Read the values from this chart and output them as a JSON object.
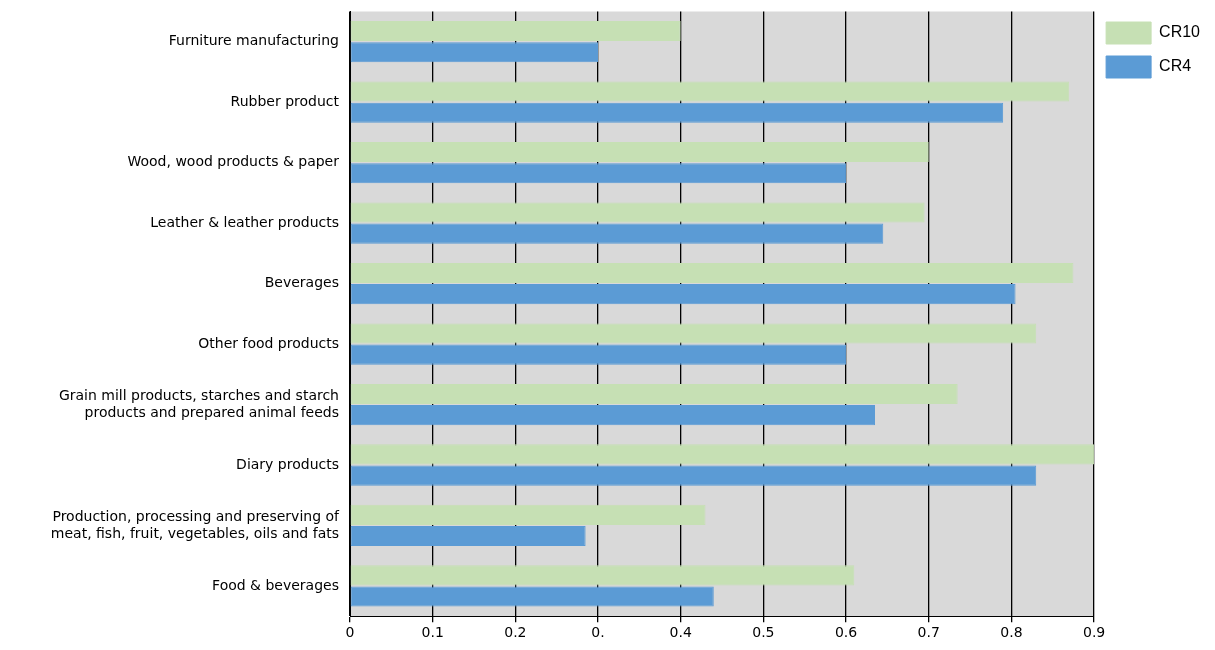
{
  "chart_data": {
    "type": "bar",
    "orientation": "horizontal",
    "categories": [
      "Furniture manufacturing",
      "Rubber product",
      "Wood, wood products & paper",
      "Leather & leather products",
      "Beverages",
      "Other food products",
      "Grain mill products, starches and starch products and prepared animal feeds",
      "Diary products",
      "Production, processing and preserving of meat, fish, fruit, vegetables, oils and fats",
      "Food & beverages"
    ],
    "series": [
      {
        "name": "CR10",
        "color": "#c6e0b4",
        "values": [
          0.4,
          0.87,
          0.7,
          0.695,
          0.875,
          0.83,
          0.735,
          0.9,
          0.43,
          0.61
        ]
      },
      {
        "name": "CR4",
        "color": "#5b9bd5",
        "values": [
          0.3,
          0.79,
          0.6,
          0.645,
          0.805,
          0.6,
          0.635,
          0.83,
          0.285,
          0.44
        ]
      }
    ],
    "xlim": [
      0,
      0.9
    ],
    "xticks": [
      0,
      0.1,
      0.2,
      {
        "value": 0.3,
        "label": "0."
      },
      0.4,
      0.5,
      0.6,
      0.7,
      0.8,
      0.9
    ],
    "grid": "x",
    "legend": "top right"
  }
}
